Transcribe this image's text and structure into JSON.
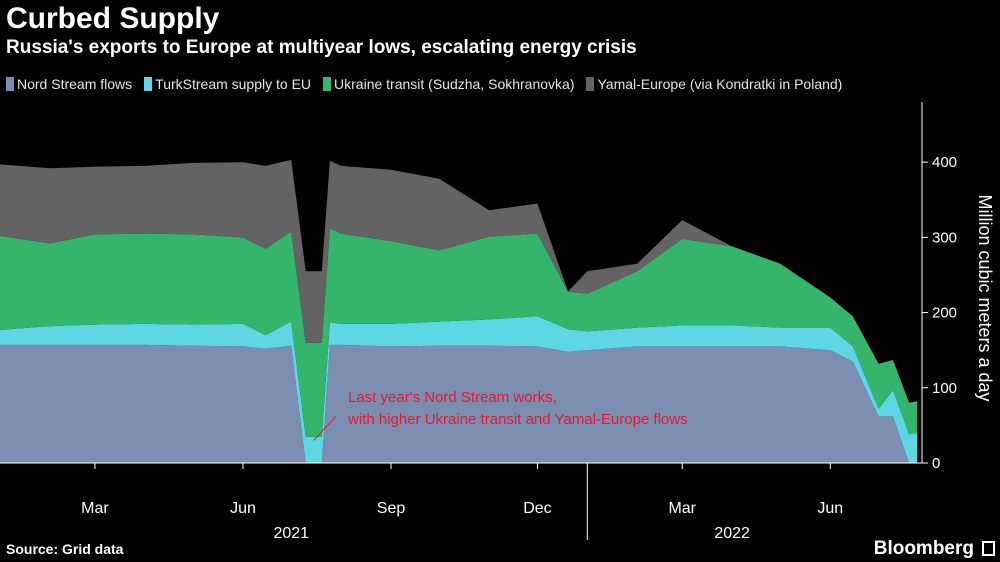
{
  "header": {
    "title": "Curbed Supply",
    "subtitle": "Russia's exports to Europe at multiyear lows, escalating energy crisis"
  },
  "colors": {
    "background": "#000000",
    "nord_stream": "#7b8db0",
    "turkstream": "#5fd6e3",
    "ukraine": "#35b46b",
    "yamal": "#636363",
    "annotation": "#e8182b",
    "axis": "#ffffff"
  },
  "footer": {
    "source": "Source: Grid data",
    "brand": "Bloomberg"
  },
  "chart_data": {
    "type": "area",
    "stacked": true,
    "ylabel": "Million cubic meters a day",
    "ylim": [
      0,
      480
    ],
    "yticks": [
      0,
      100,
      200,
      300,
      400
    ],
    "grid": false,
    "legend_position": "top-left",
    "x": [
      "2021-01-01",
      "2021-02-01",
      "2021-03-01",
      "2021-04-01",
      "2021-05-01",
      "2021-06-01",
      "2021-06-15",
      "2021-07-01",
      "2021-07-10",
      "2021-07-20",
      "2021-07-25",
      "2021-08-01",
      "2021-09-01",
      "2021-10-01",
      "2021-11-01",
      "2021-12-01",
      "2021-12-20",
      "2022-01-01",
      "2022-02-01",
      "2022-03-01",
      "2022-04-01",
      "2022-05-01",
      "2022-06-01",
      "2022-06-15",
      "2022-07-01",
      "2022-07-10",
      "2022-07-20",
      "2022-07-25"
    ],
    "series": [
      {
        "name": "Nord Stream flows",
        "values": [
          157,
          157,
          157,
          157,
          156,
          155,
          152,
          156,
          0,
          0,
          157,
          157,
          155,
          156,
          156,
          155,
          148,
          150,
          155,
          155,
          155,
          155,
          150,
          135,
          62,
          62,
          0,
          0
        ]
      },
      {
        "name": "TurkStream supply to EU",
        "values": [
          20,
          25,
          27,
          28,
          28,
          30,
          18,
          32,
          35,
          35,
          30,
          28,
          30,
          32,
          35,
          40,
          30,
          25,
          25,
          28,
          28,
          25,
          30,
          20,
          10,
          35,
          38,
          40
        ]
      },
      {
        "name": "Ukraine transit (Sudzha, Sokhranovka)",
        "values": [
          125,
          110,
          120,
          120,
          120,
          115,
          115,
          120,
          125,
          125,
          125,
          120,
          110,
          95,
          110,
          110,
          50,
          50,
          75,
          115,
          105,
          85,
          40,
          40,
          60,
          40,
          42,
          42
        ]
      },
      {
        "name": "Yamal-Europe (via Kondratki in Poland)",
        "values": [
          95,
          100,
          90,
          90,
          95,
          100,
          110,
          95,
          95,
          95,
          90,
          90,
          95,
          95,
          35,
          40,
          0,
          30,
          10,
          25,
          0,
          0,
          0,
          0,
          0,
          0,
          0,
          0
        ]
      }
    ],
    "x_ticks": [
      {
        "date": "2021-03-01",
        "label": "Mar"
      },
      {
        "date": "2021-06-01",
        "label": "Jun"
      },
      {
        "date": "2021-09-01",
        "label": "Sep"
      },
      {
        "date": "2021-12-01",
        "label": "Dec"
      },
      {
        "date": "2022-03-01",
        "label": "Mar"
      },
      {
        "date": "2022-06-01",
        "label": "Jun"
      }
    ],
    "years": [
      {
        "label": "2021",
        "center": "2021-07-01"
      },
      {
        "label": "2022",
        "center": "2022-04-01"
      }
    ],
    "annotation": {
      "lines": [
        "Last year's Nord Stream works,",
        "with higher Ukraine transit and Yamal-Europe flows"
      ],
      "date": "2021-07-15",
      "value": 30
    }
  }
}
